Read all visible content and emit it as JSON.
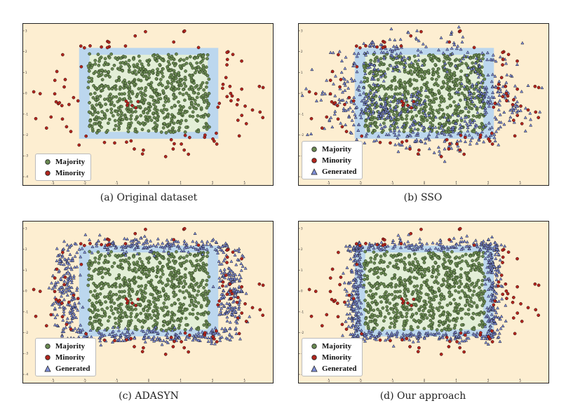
{
  "colors": {
    "background": "#fdeed1",
    "outer_band": "#bcd7ee",
    "inner_region": "#e3efd7",
    "majority": "#6a8a52",
    "minority": "#b3261e",
    "generated": "#7f8fd8"
  },
  "chart_data": [
    {
      "type": "scatter",
      "caption": "(a) Original dataset",
      "xlim": [
        -3.8,
        3.8
      ],
      "ylim": [
        -4.2,
        3.2
      ],
      "x_ticks": [
        "-3",
        "-2",
        "-1",
        "0",
        "1",
        "2",
        "3"
      ],
      "y_ticks": [
        "3",
        "2",
        "1",
        "0",
        "-1",
        "-2",
        "-3",
        "-4"
      ],
      "inner_box": {
        "x": [
          -2,
          2
        ],
        "y": [
          -2,
          2
        ]
      },
      "grid": false,
      "legend_position": "bottom-left",
      "legend": [
        {
          "label": "Majority",
          "marker": "circle",
          "color": "#6a8a52"
        },
        {
          "label": "Minority",
          "marker": "circle",
          "color": "#b3261e"
        }
      ],
      "series": [
        {
          "name": "Majority",
          "marker": "circle",
          "color": "#6a8a52",
          "count": 700,
          "distribution": "uniform in [-1.9,1.9] x [-1.9,1.9]"
        },
        {
          "name": "Minority",
          "marker": "circle",
          "color": "#b3261e",
          "count": 90,
          "distribution": "outside box, radius up to ~3.7"
        }
      ]
    },
    {
      "type": "scatter",
      "caption": "(b) SSO",
      "xlim": [
        -3.8,
        3.8
      ],
      "ylim": [
        -4.2,
        3.2
      ],
      "x_ticks": [
        "-3",
        "-2",
        "-1",
        "0",
        "1",
        "2",
        "3"
      ],
      "y_ticks": [
        "3",
        "2",
        "1",
        "0",
        "-1",
        "-2",
        "-3",
        "-4"
      ],
      "inner_box": {
        "x": [
          -2,
          2
        ],
        "y": [
          -2,
          2
        ]
      },
      "grid": false,
      "legend_position": "bottom-left",
      "legend": [
        {
          "label": "Majority",
          "marker": "circle",
          "color": "#6a8a52"
        },
        {
          "label": "Minority",
          "marker": "circle",
          "color": "#b3261e"
        },
        {
          "label": "Generated",
          "marker": "triangle",
          "color": "#7f8fd8"
        }
      ],
      "series": [
        {
          "name": "Majority",
          "marker": "circle",
          "color": "#6a8a52",
          "count": 700
        },
        {
          "name": "Minority",
          "marker": "circle",
          "color": "#b3261e",
          "count": 90
        },
        {
          "name": "Generated",
          "marker": "triangle",
          "color": "#7f8fd8",
          "count": 600,
          "distribution": "scattered around minority, overlapping box edges"
        }
      ]
    },
    {
      "type": "scatter",
      "caption": "(c) ADASYN",
      "xlim": [
        -3.8,
        3.8
      ],
      "ylim": [
        -4.2,
        3.2
      ],
      "x_ticks": [
        "-3",
        "-2",
        "-1",
        "0",
        "1",
        "2",
        "3"
      ],
      "y_ticks": [
        "3",
        "2",
        "1",
        "0",
        "-1",
        "-2",
        "-3",
        "-4"
      ],
      "inner_box": {
        "x": [
          -2,
          2
        ],
        "y": [
          -2,
          2
        ]
      },
      "grid": false,
      "legend_position": "bottom-left",
      "legend": [
        {
          "label": "Majority",
          "marker": "circle",
          "color": "#6a8a52"
        },
        {
          "label": "Minority",
          "marker": "circle",
          "color": "#b3261e"
        },
        {
          "label": "Generated",
          "marker": "triangle",
          "color": "#7f8fd8"
        }
      ],
      "series": [
        {
          "name": "Majority",
          "marker": "circle",
          "color": "#6a8a52",
          "count": 700
        },
        {
          "name": "Minority",
          "marker": "circle",
          "color": "#b3261e",
          "count": 90
        },
        {
          "name": "Generated",
          "marker": "triangle",
          "color": "#7f8fd8",
          "count": 700,
          "distribution": "curved bands along box border"
        }
      ]
    },
    {
      "type": "scatter",
      "caption": "(d) Our approach",
      "xlim": [
        -3.8,
        3.8
      ],
      "ylim": [
        -4.2,
        3.2
      ],
      "x_ticks": [
        "-3",
        "-2",
        "-1",
        "0",
        "1",
        "2",
        "3"
      ],
      "y_ticks": [
        "3",
        "2",
        "1",
        "0",
        "-1",
        "-2",
        "-3",
        "-4"
      ],
      "inner_box": {
        "x": [
          -2,
          2
        ],
        "y": [
          -2,
          2
        ]
      },
      "grid": false,
      "legend_position": "bottom-left",
      "legend": [
        {
          "label": "Majority",
          "marker": "circle",
          "color": "#6a8a52"
        },
        {
          "label": "Minority",
          "marker": "circle",
          "color": "#b3261e"
        },
        {
          "label": "Generated",
          "marker": "triangle",
          "color": "#7f8fd8"
        }
      ],
      "series": [
        {
          "name": "Majority",
          "marker": "circle",
          "color": "#6a8a52",
          "count": 700
        },
        {
          "name": "Minority",
          "marker": "circle",
          "color": "#b3261e",
          "count": 90
        },
        {
          "name": "Generated",
          "marker": "triangle",
          "color": "#7f8fd8",
          "count": 650,
          "distribution": "tight band just outside box border"
        }
      ]
    }
  ]
}
